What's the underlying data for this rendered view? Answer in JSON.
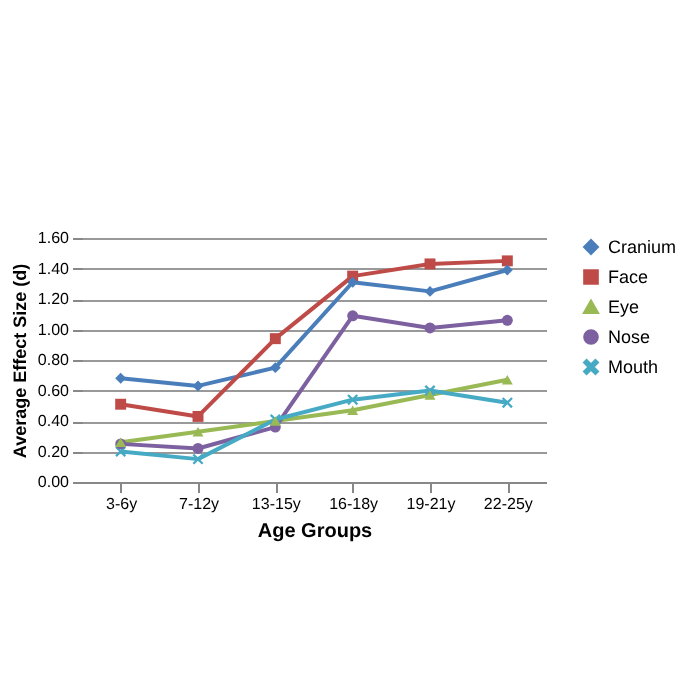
{
  "chart_data": {
    "type": "line",
    "xlabel": "Age Groups",
    "ylabel": "Average Effect Size (d)",
    "categories": [
      "3-6y",
      "7-12y",
      "13-15y",
      "16-18y",
      "19-21y",
      "22-25y"
    ],
    "ylim": [
      0,
      1.6
    ],
    "yticks": [
      {
        "value": 0,
        "label": "0.00"
      },
      {
        "value": 0.2,
        "label": "0.20"
      },
      {
        "value": 0.4,
        "label": "0.40"
      },
      {
        "value": 0.6,
        "label": "0.60"
      },
      {
        "value": 0.8,
        "label": "0.80"
      },
      {
        "value": 1,
        "label": "1.00"
      },
      {
        "value": 1.2,
        "label": "1.20"
      },
      {
        "value": 1.4,
        "label": "1.40"
      },
      {
        "value": 1.6,
        "label": "1.60"
      }
    ],
    "grid": "y",
    "legend": "right",
    "series": [
      {
        "name": "Cranium",
        "color": "#4a7ebb",
        "marker": "diamond",
        "values": [
          0.68,
          0.63,
          0.75,
          1.31,
          1.25,
          1.39
        ]
      },
      {
        "name": "Face",
        "color": "#be4b48",
        "marker": "square",
        "values": [
          0.51,
          0.43,
          0.94,
          1.35,
          1.43,
          1.45
        ]
      },
      {
        "name": "Eye",
        "color": "#98b954",
        "marker": "triangle",
        "values": [
          0.26,
          0.33,
          0.4,
          0.47,
          0.57,
          0.67
        ]
      },
      {
        "name": "Nose",
        "color": "#7d60a0",
        "marker": "circle",
        "values": [
          0.25,
          0.22,
          0.36,
          1.09,
          1.01,
          1.06
        ]
      },
      {
        "name": "Mouth",
        "color": "#46aac5",
        "marker": "cross",
        "values": [
          0.2,
          0.15,
          0.41,
          0.54,
          0.6,
          0.52
        ]
      }
    ]
  }
}
